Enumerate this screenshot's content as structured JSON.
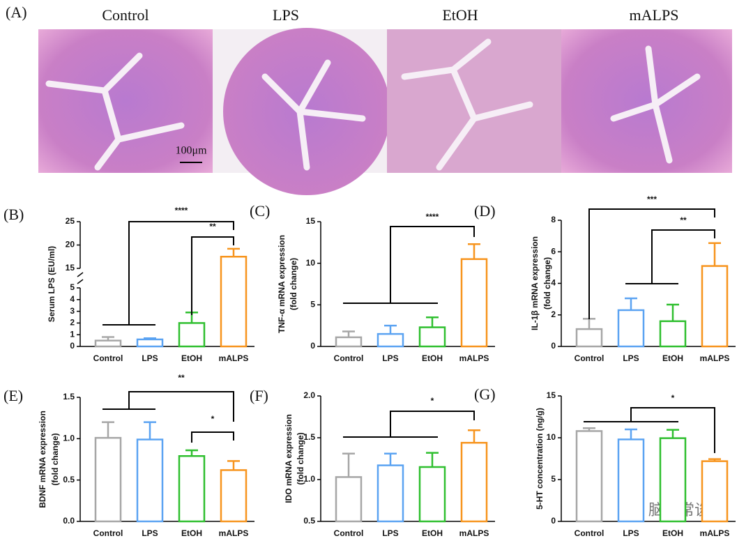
{
  "panel_a": {
    "label": "(A)",
    "images": [
      "Control",
      "LPS",
      "EtOH",
      "mALPS"
    ],
    "scale_bar": "100μm"
  },
  "chart_data": [
    {
      "type": "bar",
      "panel": "(B)",
      "ylabel": [
        "Serum LPS  (EU/ml)"
      ],
      "categories": [
        "Control",
        "LPS",
        "EtOH",
        "mALPS"
      ],
      "values": [
        0.5,
        0.6,
        2.0,
        17.5
      ],
      "errors": [
        0.3,
        0.1,
        0.9,
        1.7
      ],
      "colors": [
        "#a6a6a6",
        "#5ba3f2",
        "#2fbf2f",
        "#f7941d"
      ],
      "ylim": [
        0,
        25
      ],
      "ybreak": [
        5,
        15
      ],
      "yticks": [
        0,
        1,
        2,
        3,
        4,
        5,
        15,
        20,
        25
      ],
      "significance": [
        "****",
        "**"
      ]
    },
    {
      "type": "bar",
      "panel": "(C)",
      "ylabel": [
        "TNF-α mRNA expression",
        "(fold change)"
      ],
      "categories": [
        "Control",
        "LPS",
        "EtOH",
        "mALPS"
      ],
      "values": [
        1.1,
        1.5,
        2.3,
        10.5
      ],
      "errors": [
        0.7,
        1.0,
        1.2,
        1.8
      ],
      "colors": [
        "#a6a6a6",
        "#5ba3f2",
        "#2fbf2f",
        "#f7941d"
      ],
      "ylim": [
        0,
        15
      ],
      "yticks": [
        0,
        5,
        10,
        15
      ],
      "significance": [
        "****"
      ]
    },
    {
      "type": "bar",
      "panel": "(D)",
      "ylabel": [
        "IL-1β mRNA expression",
        "(fold change)"
      ],
      "categories": [
        "Control",
        "LPS",
        "EtOH",
        "mALPS"
      ],
      "values": [
        1.1,
        2.3,
        1.6,
        5.1
      ],
      "errors": [
        0.65,
        0.75,
        1.05,
        1.45
      ],
      "colors": [
        "#a6a6a6",
        "#5ba3f2",
        "#2fbf2f",
        "#f7941d"
      ],
      "ylim": [
        0,
        8
      ],
      "yticks": [
        0,
        2,
        4,
        6,
        8
      ],
      "significance": [
        "***",
        "**"
      ]
    },
    {
      "type": "bar",
      "panel": "(E)",
      "ylabel": [
        "BDNF mRNA expression",
        "(fold change)"
      ],
      "categories": [
        "Control",
        "LPS",
        "EtOH",
        "mALPS"
      ],
      "values": [
        1.01,
        0.99,
        0.79,
        0.62
      ],
      "errors": [
        0.19,
        0.21,
        0.07,
        0.11
      ],
      "colors": [
        "#a6a6a6",
        "#5ba3f2",
        "#2fbf2f",
        "#f7941d"
      ],
      "ylim": [
        0,
        1.5
      ],
      "yticks": [
        {
          "value": 0,
          "label": "0.0"
        },
        0.5,
        {
          "value": 1,
          "label": "1.0"
        },
        1.5
      ],
      "significance": [
        "**",
        "*"
      ]
    },
    {
      "type": "bar",
      "panel": "(F)",
      "ylabel": [
        "IDO mRNA expression",
        "(fold change)"
      ],
      "categories": [
        "Control",
        "LPS",
        "EtOH",
        "mALPS"
      ],
      "values": [
        1.03,
        1.17,
        1.15,
        1.44
      ],
      "errors": [
        0.28,
        0.14,
        0.17,
        0.15
      ],
      "colors": [
        "#a6a6a6",
        "#5ba3f2",
        "#2fbf2f",
        "#f7941d"
      ],
      "ylim": [
        0.5,
        2
      ],
      "yticks": [
        0.5,
        {
          "value": 1,
          "label": "1.0"
        },
        1.5,
        {
          "value": 2,
          "label": "2.0"
        }
      ],
      "significance": [
        "*"
      ]
    },
    {
      "type": "bar",
      "panel": "(G)",
      "ylabel": [
        "5-HT concentration (ng/g)"
      ],
      "categories": [
        "Control",
        "LPS",
        "EtOH",
        "mALPS"
      ],
      "values": [
        10.8,
        9.8,
        9.95,
        7.2
      ],
      "errors": [
        0.35,
        1.2,
        1.0,
        0.25
      ],
      "colors": [
        "#a6a6a6",
        "#5ba3f2",
        "#2fbf2f",
        "#f7941d"
      ],
      "ylim": [
        0,
        15
      ],
      "yticks": [
        0,
        5,
        10,
        15
      ],
      "significance": [
        "*"
      ]
    }
  ],
  "watermark": "脑声常谈"
}
